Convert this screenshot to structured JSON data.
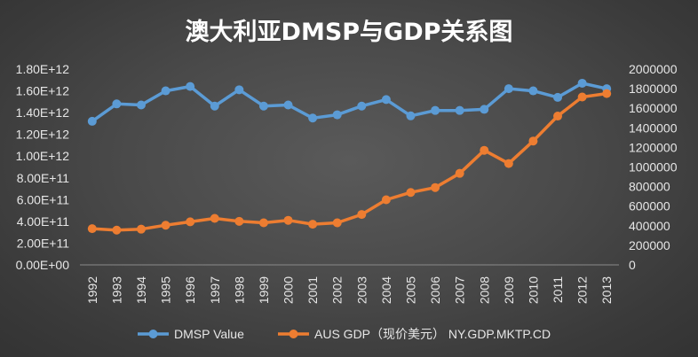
{
  "chart_data": {
    "type": "line",
    "title": "澳大利亚DMSP与GDP关系图",
    "categories": [
      "1992",
      "1993",
      "1994",
      "1995",
      "1996",
      "1997",
      "1998",
      "1999",
      "2000",
      "2001",
      "2002",
      "2003",
      "2004",
      "2005",
      "2006",
      "2007",
      "2008",
      "2009",
      "2010",
      "2011",
      "2012",
      "2013"
    ],
    "series": [
      {
        "name": "DMSP Value",
        "axis": "left",
        "color": "#5b9bd5",
        "values": [
          1320000000000.0,
          1480000000000.0,
          1470000000000.0,
          1600000000000.0,
          1640000000000.0,
          1460000000000.0,
          1610000000000.0,
          1460000000000.0,
          1470000000000.0,
          1350000000000.0,
          1380000000000.0,
          1460000000000.0,
          1520000000000.0,
          1370000000000.0,
          1420000000000.0,
          1420000000000.0,
          1430000000000.0,
          1620000000000.0,
          1600000000000.0,
          1540000000000.0,
          1670000000000.0,
          1620000000000.0
        ]
      },
      {
        "name": "AUS GDP（现价美元） NY.GDP.MKTP.CD",
        "axis": "right",
        "color": "#ed7d31",
        "values": [
          370000,
          355000,
          365000,
          405000,
          440000,
          475000,
          445000,
          430000,
          455000,
          415000,
          430000,
          515000,
          665000,
          740000,
          790000,
          935000,
          1170000,
          1035000,
          1265000,
          1520000,
          1715000,
          1750000
        ]
      }
    ],
    "ylim_left": [
      0,
      1800000000000.0
    ],
    "ylim_right": [
      0,
      2000000
    ],
    "yticks_left": [
      "0.00E+00",
      "2.00E+11",
      "4.00E+11",
      "6.00E+11",
      "8.00E+11",
      "1.00E+12",
      "1.20E+12",
      "1.40E+12",
      "1.60E+12",
      "1.80E+12"
    ],
    "yticks_right": [
      "0",
      "200000",
      "400000",
      "600000",
      "800000",
      "1000000",
      "1200000",
      "1400000",
      "1600000",
      "1800000",
      "2000000"
    ],
    "grid": false,
    "legend": "bottom"
  }
}
